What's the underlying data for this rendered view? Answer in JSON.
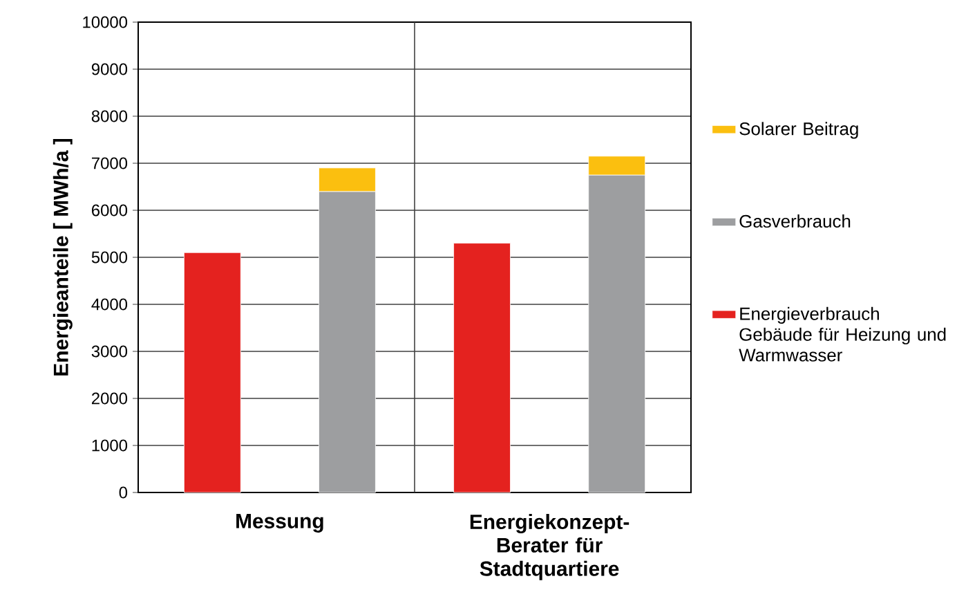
{
  "chart_data": {
    "type": "bar",
    "stacked": true,
    "ylabel": "Energieanteile  [ MWh/a ]",
    "categories": [
      null,
      null,
      null,
      null
    ],
    "annotations": [
      "Messung",
      "Energiekonzept-Berater für Stadtquartiere"
    ],
    "series": [
      {
        "name": "Energieverbrauch Gebäude für Heizung und Warmwasser",
        "color": "#e4221f",
        "values": [
          5100,
          null,
          5300,
          null
        ]
      },
      {
        "name": "Gasverbrauch",
        "color": "#9d9ea0",
        "values": [
          null,
          6400,
          null,
          6750
        ]
      },
      {
        "name": "Solarer Beitrag",
        "color": "#fbbf0f",
        "values": [
          null,
          500,
          null,
          400
        ]
      }
    ],
    "ylim": [
      0,
      10000
    ],
    "yticks": [
      0,
      1000,
      2000,
      3000,
      4000,
      5000,
      6000,
      7000,
      8000,
      9000,
      10000
    ],
    "grid": "y",
    "legend": "right"
  }
}
